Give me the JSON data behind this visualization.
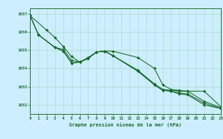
{
  "background_color": "#cceeff",
  "grid_color": "#aaddcc",
  "line_color": "#1a6b2a",
  "marker_color": "#1a6b2a",
  "xlabel": "Graphe pression niveau de la mer (hPa)",
  "xlabel_color": "#1a6b2a",
  "tick_color": "#1a6b2a",
  "xlim": [
    0,
    23
  ],
  "ylim": [
    1031.5,
    1037.3
  ],
  "yticks": [
    1032,
    1033,
    1034,
    1035,
    1036,
    1037
  ],
  "xticks": [
    0,
    1,
    2,
    3,
    4,
    5,
    6,
    7,
    8,
    9,
    10,
    11,
    12,
    13,
    14,
    15,
    16,
    17,
    18,
    19,
    20,
    21,
    22,
    23
  ],
  "line1": {
    "x": [
      0,
      2,
      3,
      4,
      5,
      6,
      7,
      8,
      9,
      10,
      13,
      15,
      16,
      17,
      18,
      19,
      21,
      23
    ],
    "y": [
      1036.9,
      1036.1,
      1035.7,
      1035.2,
      1034.65,
      1034.35,
      1034.6,
      1034.9,
      1034.95,
      1034.95,
      1034.6,
      1034.0,
      1033.1,
      1032.85,
      1032.8,
      1032.75,
      1032.75,
      1031.9
    ]
  },
  "line2": {
    "x": [
      0,
      1,
      3,
      4,
      5,
      6,
      7,
      8,
      9,
      10,
      13,
      15,
      16,
      17,
      18,
      19,
      21,
      23
    ],
    "y": [
      1036.9,
      1035.85,
      1035.15,
      1035.05,
      1034.45,
      1034.35,
      1034.55,
      1034.9,
      1034.95,
      1034.7,
      1033.9,
      1033.15,
      1032.85,
      1032.8,
      1032.75,
      1032.75,
      1032.2,
      1031.85
    ]
  },
  "line3": {
    "x": [
      0,
      1,
      3,
      4,
      5,
      6,
      7,
      8,
      9,
      10,
      13,
      15,
      16,
      17,
      18,
      19,
      21,
      23
    ],
    "y": [
      1036.9,
      1035.85,
      1035.15,
      1034.95,
      1034.3,
      1034.35,
      1034.55,
      1034.9,
      1034.95,
      1034.7,
      1033.85,
      1033.1,
      1032.8,
      1032.75,
      1032.6,
      1032.55,
      1032.0,
      1031.8
    ]
  },
  "line4": {
    "x": [
      0,
      1,
      3,
      4,
      5,
      6,
      7,
      8,
      9,
      10,
      13,
      15,
      16,
      17,
      18,
      19,
      21,
      23
    ],
    "y": [
      1036.9,
      1035.85,
      1035.15,
      1034.95,
      1034.3,
      1034.35,
      1034.55,
      1034.9,
      1034.95,
      1034.7,
      1033.85,
      1033.1,
      1032.8,
      1032.75,
      1032.65,
      1032.6,
      1032.1,
      1031.8
    ]
  }
}
